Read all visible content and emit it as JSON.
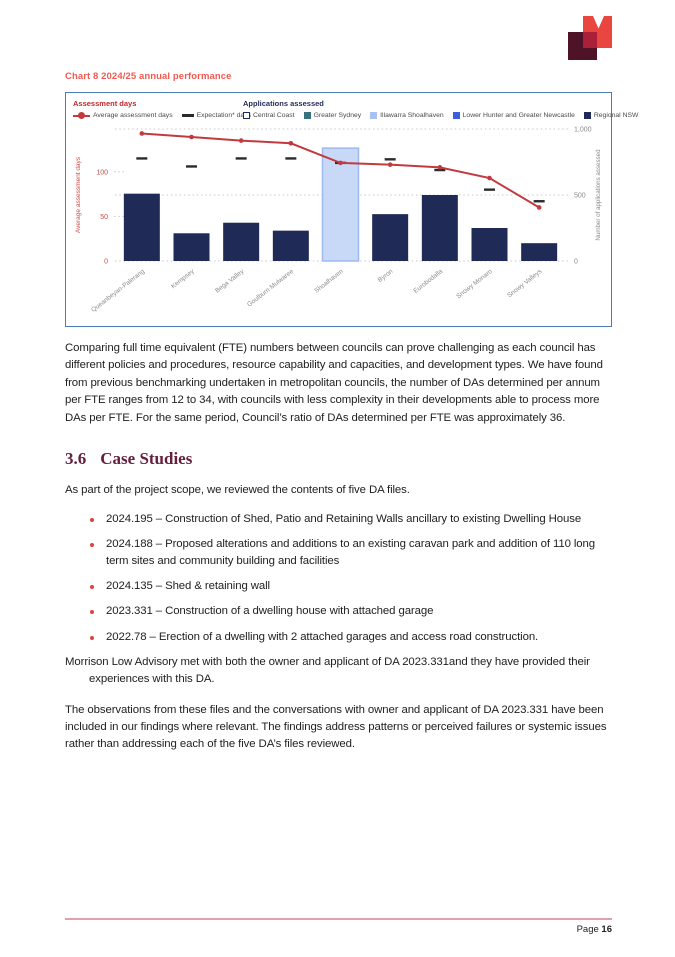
{
  "brand": {
    "logo_red": "#e8463f",
    "logo_maroon": "#4f1327",
    "logo_overlap": "#aa2038",
    "accent_red": "#ef5a50",
    "heading_maroon": "#64203d",
    "footer_rule_color": "#e2a0ab",
    "chart_frame": "#4a7db8"
  },
  "chart_heading": "Chart 8 2024/25 annual performance",
  "chart_data": {
    "type": "bar+line combo",
    "title": "Chart 8 2024/25 annual performance",
    "categories": [
      "Queanbeyan-Palerang",
      "Kempsey",
      "Bega Valley",
      "Goulburn Mulwaree",
      "Shoalhaven",
      "Byron",
      "Eurobodalla",
      "Snowy Monaro",
      "Snowy Valleys"
    ],
    "bar_series": {
      "name": "Number of applications assessed",
      "values": [
        510,
        210,
        290,
        230,
        855,
        355,
        500,
        250,
        135
      ],
      "highlight_category": "Shoalhaven"
    },
    "line_series": {
      "name": "Average assessment days",
      "values": [
        143,
        139,
        135,
        132,
        110,
        108,
        105,
        93,
        60
      ]
    },
    "dash_series": {
      "name": "Expectation* days",
      "values": [
        115,
        106,
        115,
        115,
        110,
        114,
        102,
        80,
        67
      ]
    },
    "left_axis": {
      "title": "Average assessment days",
      "ticks": [
        0,
        50,
        100
      ],
      "max": 148,
      "color": "#cf4a45"
    },
    "right_axis": {
      "title": "Number of applications assessed",
      "ticks": [
        {
          "v": 0,
          "label": "0"
        },
        {
          "v": 500,
          "label": "500"
        },
        {
          "v": 1000,
          "label": "1,000"
        }
      ],
      "max": 1000,
      "color": "#8a8a8a"
    },
    "legend_assessment": {
      "title": "Assessment days",
      "title_color": "#c0272d",
      "line_label": "Average assessment days",
      "dash_label": "Expectation* days",
      "line_color": "#c23a3f",
      "dash_color": "#2b2b2b"
    },
    "legend_applications": {
      "title": "Applications assessed",
      "title_color": "#1f2a56",
      "items": [
        {
          "label": "Central Coast",
          "color": "#ffffff",
          "border": "#1f2a56"
        },
        {
          "label": "Greater Sydney",
          "color": "#37737e"
        },
        {
          "label": "Illawarra Shoalhaven",
          "color": "#a9c0f5"
        },
        {
          "label": "Lower Hunter and Greater Newcastle",
          "color": "#3e5fd9"
        },
        {
          "label": "Regional NSW",
          "color": "#1f2a56"
        }
      ]
    },
    "colors": {
      "bar": "#1f2a56",
      "bar_highlight_fill": "#c7d9f7",
      "bar_highlight_border": "#9db9ee",
      "line": "#c23a3f",
      "dash": "#2b2b2b",
      "grid": "#c9c9c9",
      "x_label": "#8c8c8c"
    },
    "grid": "dotted horizontal at right-axis ticks",
    "legend_position": "top"
  },
  "body": {
    "bullet_color": "#d8463c",
    "para1": "Comparing full time equivalent (FTE) numbers between councils can prove challenging as each council has different policies and procedures, resource capability and capacities, and development types. We have found from previous benchmarking undertaken in metropolitan councils, the number of DAs determined per annum per FTE ranges from 12 to 34, with councils with less complexity in their developments able to process more DAs per FTE. For the same period, Council’s ratio of DAs determined per FTE was approximately 36.",
    "section": {
      "number": "3.6",
      "title": "Case Studies"
    },
    "para2": "As part of the project scope, we reviewed the contents of five DA files.",
    "bullets": [
      "2024.195 – Construction of Shed, Patio and Retaining Walls ancillary to existing Dwelling House",
      "2024.188 – Proposed alterations and additions to an existing caravan park and addition of 110 long term sites and community building and facilities",
      "2024.135 – Shed & retaining wall",
      "2023.331 – Construction of a dwelling house with attached garage",
      "2022.78 – Erection of a dwelling with 2 attached garages and access road construction."
    ],
    "para3": "Morrison Low Advisory met with both the owner and applicant of DA 2023.331and they have provided their experiences with this DA.",
    "para4": "The observations from these files and the conversations with owner and applicant of DA 2023.331 have been included in our findings where relevant. The findings address patterns or perceived failures or systemic issues rather than addressing each of the five DA’s files reviewed."
  },
  "footer": {
    "label": "Page",
    "number": "16"
  }
}
